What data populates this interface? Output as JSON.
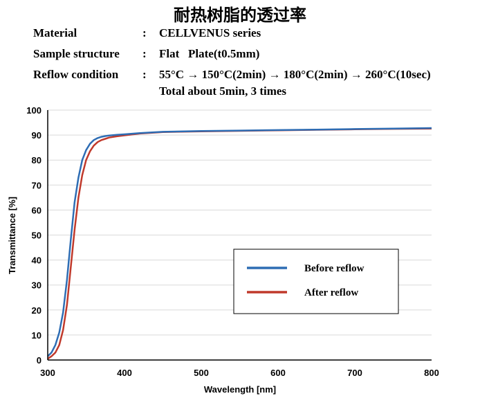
{
  "header": {
    "title": "耐热树脂的透过率",
    "rows": [
      {
        "label": "Material",
        "colon": ":",
        "value": "CELLVENUS series"
      },
      {
        "label": "Sample structure",
        "colon": ":",
        "value": "Flat   Plate(t0.5mm)"
      },
      {
        "label": "Reflow condition",
        "colon": ":",
        "value": "55°C → 150°C(2min) → 180°C(2min) → 260°C(10sec)"
      }
    ],
    "row4": "Total about 5min, 3 times"
  },
  "chart_data": {
    "type": "line",
    "xlabel": "Wavelength [nm]",
    "ylabel": "Transmittance [%]",
    "xlim": [
      300,
      800
    ],
    "ylim": [
      0,
      100
    ],
    "xticks": [
      "300",
      "400",
      "500",
      "600",
      "700",
      "800"
    ],
    "yticks": [
      "0",
      "10",
      "20",
      "30",
      "40",
      "50",
      "60",
      "70",
      "80",
      "90",
      "100"
    ],
    "grid": "horizontal",
    "legend_position": "right",
    "series": [
      {
        "name": "Before reflow",
        "color": "#2E6DB4",
        "x": [
          300,
          305,
          310,
          315,
          320,
          325,
          330,
          335,
          340,
          345,
          350,
          355,
          360,
          365,
          370,
          375,
          380,
          390,
          400,
          420,
          450,
          500,
          550,
          600,
          650,
          700,
          750,
          800
        ],
        "y": [
          1.5,
          3,
          6,
          11,
          19,
          32,
          48,
          63,
          73,
          80,
          84,
          86.5,
          88,
          88.8,
          89.3,
          89.6,
          89.8,
          90.1,
          90.3,
          90.8,
          91.3,
          91.6,
          91.8,
          92,
          92.2,
          92.4,
          92.6,
          92.8
        ]
      },
      {
        "name": "After reflow",
        "color": "#C0392B",
        "x": [
          300,
          305,
          310,
          315,
          320,
          325,
          330,
          335,
          340,
          345,
          350,
          355,
          360,
          365,
          370,
          375,
          380,
          390,
          400,
          420,
          450,
          500,
          550,
          600,
          650,
          700,
          750,
          800
        ],
        "y": [
          0.5,
          1.5,
          3,
          6,
          12,
          22,
          37,
          52,
          65,
          74,
          80,
          83.5,
          85.8,
          87.2,
          88,
          88.5,
          89,
          89.5,
          89.9,
          90.6,
          91.2,
          91.5,
          91.7,
          91.9,
          92.1,
          92.3,
          92.5,
          92.6
        ]
      }
    ]
  },
  "colors": {
    "before_line": "#2E6DB4",
    "after_line": "#C0392B",
    "grid": "#d9d9d9",
    "axis": "#000000"
  }
}
